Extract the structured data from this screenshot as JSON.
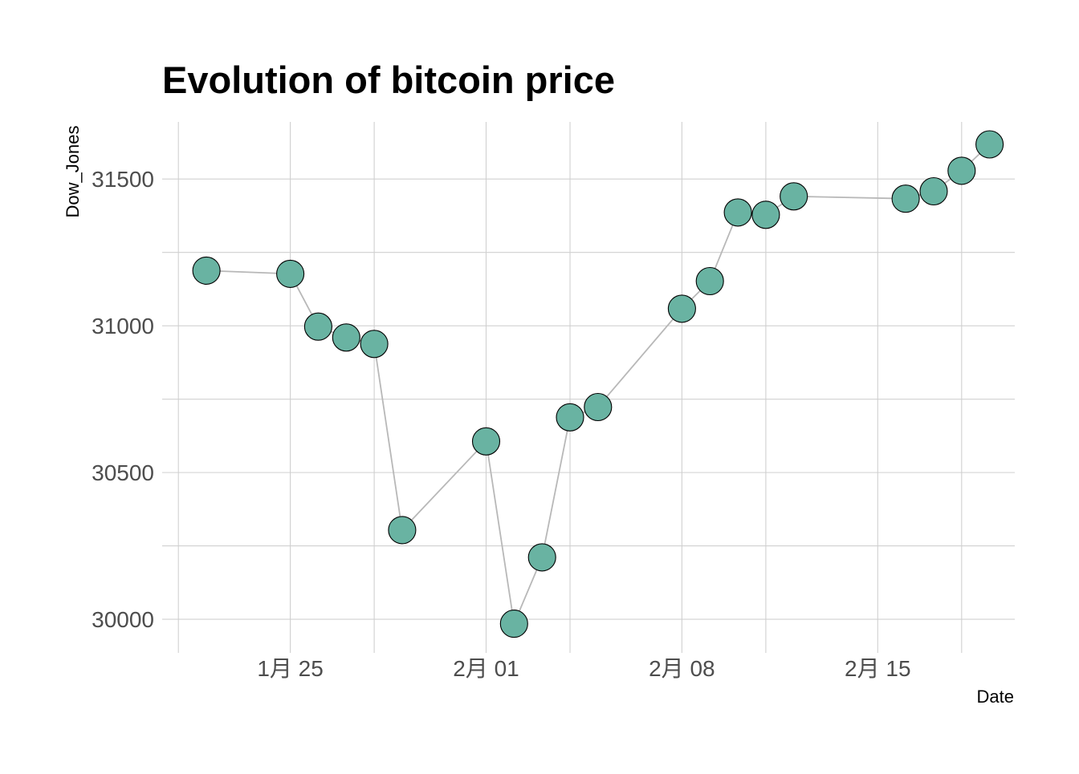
{
  "chart_data": {
    "type": "line",
    "title": "Evolution of bitcoin price",
    "xlabel": "Date",
    "ylabel": "Dow_Jones",
    "x_type": "date",
    "xlim": [
      "2021-01-21",
      "2021-02-19"
    ],
    "ylim": [
      29900,
      31700
    ],
    "grid": true,
    "legend": "none",
    "x_ticks": [
      {
        "value": "2021-01-25",
        "label": "1月 25"
      },
      {
        "value": "2021-02-01",
        "label": "2月 01"
      },
      {
        "value": "2021-02-08",
        "label": "2月 08"
      },
      {
        "value": "2021-02-15",
        "label": "2月 15"
      }
    ],
    "x_minor_ticks": [
      "2021-01-21",
      "2021-01-28",
      "2021-02-04",
      "2021-02-11",
      "2021-02-18"
    ],
    "y_ticks": [
      30000,
      30500,
      31000,
      31500
    ],
    "y_minor_ticks": [
      30250,
      30750,
      31250
    ],
    "series": [
      {
        "points": [
          {
            "x": "2021-01-22",
            "y": 31188
          },
          {
            "x": "2021-01-25",
            "y": 31177
          },
          {
            "x": "2021-01-26",
            "y": 30997
          },
          {
            "x": "2021-01-27",
            "y": 30960
          },
          {
            "x": "2021-01-28",
            "y": 30938
          },
          {
            "x": "2021-01-29",
            "y": 30304
          },
          {
            "x": "2021-02-01",
            "y": 30606
          },
          {
            "x": "2021-02-02",
            "y": 29985
          },
          {
            "x": "2021-02-03",
            "y": 30211
          },
          {
            "x": "2021-02-04",
            "y": 30688
          },
          {
            "x": "2021-02-05",
            "y": 30723
          },
          {
            "x": "2021-02-08",
            "y": 31058
          },
          {
            "x": "2021-02-09",
            "y": 31152
          },
          {
            "x": "2021-02-10",
            "y": 31386
          },
          {
            "x": "2021-02-11",
            "y": 31378
          },
          {
            "x": "2021-02-12",
            "y": 31441
          },
          {
            "x": "2021-02-16",
            "y": 31433
          },
          {
            "x": "2021-02-17",
            "y": 31458
          },
          {
            "x": "2021-02-18",
            "y": 31528
          },
          {
            "x": "2021-02-19",
            "y": 31618
          }
        ]
      }
    ]
  },
  "colors": {
    "point_fill": "#69b3a2",
    "point_stroke": "#000000",
    "line": "#b8b8b8",
    "grid": "#d0d0d0",
    "tick_label": "#4d4d4d"
  }
}
